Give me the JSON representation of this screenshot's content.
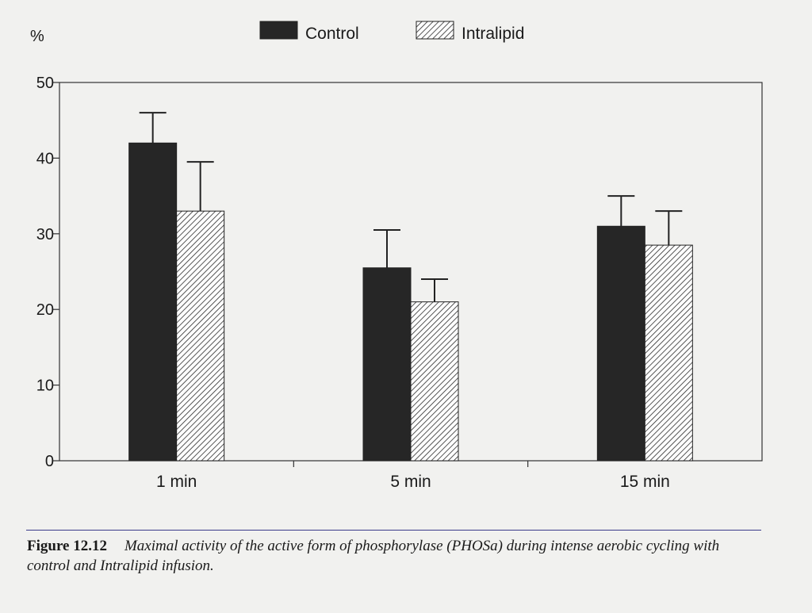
{
  "chart_data": {
    "type": "bar",
    "ylabel": "%",
    "ylim": [
      0,
      50
    ],
    "yticks": [
      0,
      10,
      20,
      30,
      40,
      50
    ],
    "categories": [
      "1 min",
      "5 min",
      "15 min"
    ],
    "series": [
      {
        "name": "Control",
        "values": [
          42,
          25.5,
          31
        ],
        "error": [
          4,
          5,
          4
        ],
        "color": "#262626",
        "pattern": "solid"
      },
      {
        "name": "Intralipid",
        "values": [
          33,
          21,
          28.5
        ],
        "error": [
          6.5,
          3,
          4.5
        ],
        "color": "#262626",
        "pattern": "hatched"
      }
    ],
    "legend_position": "top"
  },
  "figure": {
    "label": "Figure 12.12",
    "caption": "Maximal activity of the active form of phosphorylase (PHOSa) during intense aerobic cycling with control and Intralipid infusion."
  }
}
